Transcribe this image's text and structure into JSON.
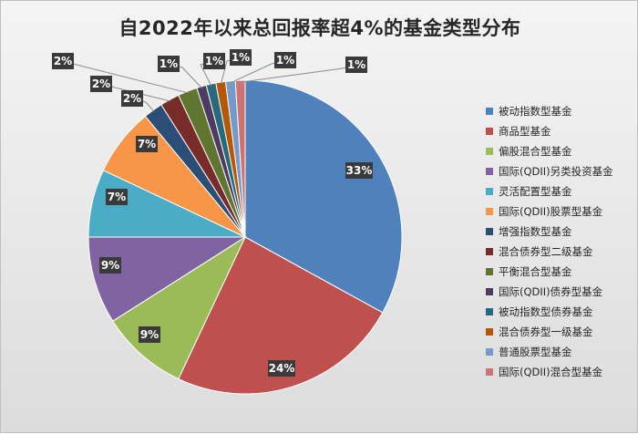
{
  "chart_data": {
    "type": "pie",
    "title": "自2022年以来总回报率超4%的基金类型分布",
    "categories": [
      "被动指数型基金",
      "商品型基金",
      "偏股混合型基金",
      "国际(QDII)另类投资基金",
      "灵活配置型基金",
      "国际(QDII)股票型基金",
      "增强指数型基金",
      "混合债券型二级基金",
      "平衡混合型基金",
      "国际(QDII)债券型基金",
      "被动指数型债券基金",
      "混合债券型一级基金",
      "普通股票型基金",
      "国际(QDII)混合型基金"
    ],
    "values": [
      33,
      24,
      9,
      9,
      7,
      7,
      2,
      2,
      2,
      1,
      1,
      1,
      1,
      1
    ],
    "labels": [
      "33%",
      "24%",
      "9%",
      "9%",
      "7%",
      "7%",
      "2%",
      "2%",
      "2%",
      "1%",
      "1%",
      "1%",
      "1%",
      "1%"
    ],
    "colors": [
      "#4f81bd",
      "#c0504d",
      "#9bbb59",
      "#8064a2",
      "#4bacc6",
      "#f79646",
      "#2c4d75",
      "#772c2a",
      "#5f7530",
      "#4d3b62",
      "#276a7c",
      "#b65708",
      "#729aca",
      "#cd7371"
    ],
    "legend_position": "right"
  }
}
